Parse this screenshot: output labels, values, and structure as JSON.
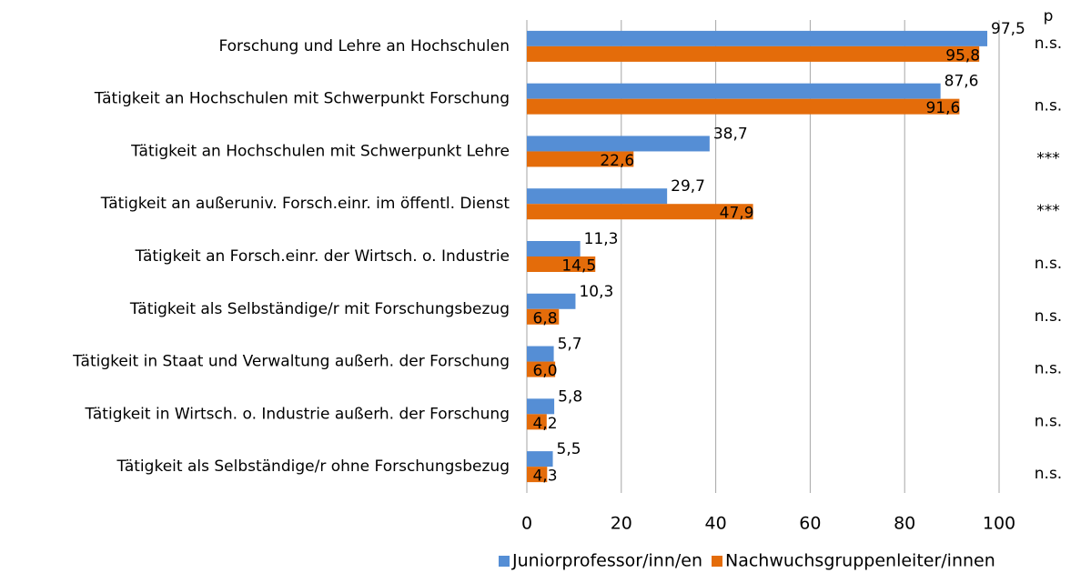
{
  "chart_data": {
    "type": "bar",
    "orientation": "horizontal",
    "categories": [
      "Forschung und Lehre an Hochschulen",
      "Tätigkeit an Hochschulen mit Schwerpunkt Forschung",
      "Tätigkeit an Hochschulen mit Schwerpunkt Lehre",
      "Tätigkeit an außeruniv. Forsch.einr. im öffentl. Dienst",
      "Tätigkeit an Forsch.einr. der Wirtsch. o. Industrie",
      "Tätigkeit als Selbständige/r mit Forschungsbezug",
      "Tätigkeit in Staat und Verwaltung außerh. der Forschung",
      "Tätigkeit in Wirtsch. o. Industrie außerh. der Forschung",
      "Tätigkeit als Selbständige/r ohne Forschungsbezug"
    ],
    "series": [
      {
        "name": "Juniorprofessor/inn/en",
        "color": "#558ed5",
        "values": [
          97.5,
          87.6,
          38.7,
          29.7,
          11.3,
          10.3,
          5.7,
          5.8,
          5.5
        ],
        "value_labels": [
          "97,5",
          "87,6",
          "38,7",
          "29,7",
          "11,3",
          "10,3",
          "5,7",
          "5,8",
          "5,5"
        ]
      },
      {
        "name": "Nachwuchsgruppenleiter/innen",
        "color": "#e46c0a",
        "values": [
          95.8,
          91.6,
          22.6,
          47.9,
          14.5,
          6.8,
          6.0,
          4.2,
          4.3
        ],
        "value_labels": [
          "95,8",
          "91,6",
          "22,6",
          "47,9",
          "14,5",
          "6,8",
          "6,0",
          "4,2",
          "4,3"
        ]
      }
    ],
    "significance_header": "p",
    "significance": [
      "n.s.",
      "n.s.",
      "***",
      "***",
      "n.s.",
      "n.s.",
      "n.s.",
      "n.s.",
      "n.s."
    ],
    "xlim": [
      0,
      100
    ],
    "xticks": [
      0,
      20,
      40,
      60,
      80,
      100
    ],
    "grid": true,
    "legend": "bottom"
  }
}
